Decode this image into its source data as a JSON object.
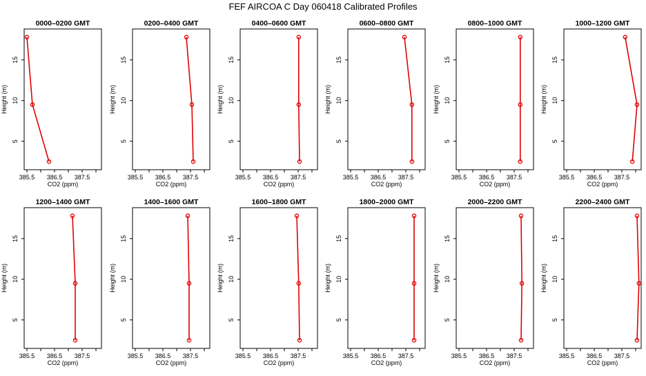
{
  "figure": {
    "title": "FEF AIRCOA C  Day 060418  Calibrated Profiles"
  },
  "colors": {
    "series": "#e00000",
    "axes": "#000000",
    "background": "#ffffff"
  },
  "chart_data": [
    {
      "type": "line",
      "title": "0000–0200 GMT",
      "xlabel": "CO2 (ppm)",
      "ylabel": "Height (m)",
      "xlim": [
        385.4,
        388.2
      ],
      "ylim": [
        1.5,
        18.8
      ],
      "xticks": [
        385.5,
        386.5,
        387.5
      ],
      "xticks_minor": [
        386,
        387,
        388
      ],
      "yticks": [
        5,
        10,
        15
      ],
      "series": [
        {
          "x": [
            386.3,
            385.7,
            385.5
          ],
          "y": [
            2.5,
            9.5,
            17.8
          ]
        }
      ]
    },
    {
      "type": "line",
      "title": "0200–0400 GMT",
      "xlabel": "CO2 (ppm)",
      "ylabel": "Height (m)",
      "xlim": [
        385.4,
        388.2
      ],
      "ylim": [
        1.5,
        18.8
      ],
      "xticks": [
        385.5,
        386.5,
        387.5
      ],
      "xticks_minor": [
        386,
        387,
        388
      ],
      "yticks": [
        5,
        10,
        15
      ],
      "series": [
        {
          "x": [
            387.6,
            387.55,
            387.35
          ],
          "y": [
            2.5,
            9.5,
            17.8
          ]
        }
      ]
    },
    {
      "type": "line",
      "title": "0400–0600 GMT",
      "xlabel": "CO2 (ppm)",
      "ylabel": "Height (m)",
      "xlim": [
        385.4,
        388.2
      ],
      "ylim": [
        1.5,
        18.8
      ],
      "xticks": [
        385.5,
        386.5,
        387.5
      ],
      "xticks_minor": [
        386,
        387,
        388
      ],
      "yticks": [
        5,
        10,
        15
      ],
      "series": [
        {
          "x": [
            387.55,
            387.52,
            387.52
          ],
          "y": [
            2.5,
            9.5,
            17.8
          ]
        }
      ]
    },
    {
      "type": "line",
      "title": "0600–0800 GMT",
      "xlabel": "CO2 (ppm)",
      "ylabel": "Height (m)",
      "xlim": [
        385.4,
        388.2
      ],
      "ylim": [
        1.5,
        18.8
      ],
      "xticks": [
        385.5,
        386.5,
        387.5
      ],
      "xticks_minor": [
        386,
        387,
        388
      ],
      "yticks": [
        5,
        10,
        15
      ],
      "series": [
        {
          "x": [
            387.72,
            387.72,
            387.45
          ],
          "y": [
            2.5,
            9.5,
            17.8
          ]
        }
      ]
    },
    {
      "type": "line",
      "title": "0800–1000 GMT",
      "xlabel": "CO2 (ppm)",
      "ylabel": "Height (m)",
      "xlim": [
        385.4,
        388.2
      ],
      "ylim": [
        1.5,
        18.8
      ],
      "xticks": [
        385.5,
        386.5,
        387.5
      ],
      "xticks_minor": [
        386,
        387,
        388
      ],
      "yticks": [
        5,
        10,
        15
      ],
      "series": [
        {
          "x": [
            387.72,
            387.72,
            387.72
          ],
          "y": [
            2.5,
            9.5,
            17.8
          ]
        }
      ]
    },
    {
      "type": "line",
      "title": "1000–1200 GMT",
      "xlabel": "CO2 (ppm)",
      "ylabel": "Height (m)",
      "xlim": [
        385.4,
        388.2
      ],
      "ylim": [
        1.5,
        18.8
      ],
      "xticks": [
        385.5,
        386.5,
        387.5
      ],
      "xticks_minor": [
        386,
        387,
        388
      ],
      "yticks": [
        5,
        10,
        15
      ],
      "series": [
        {
          "x": [
            387.88,
            388.05,
            387.62
          ],
          "y": [
            2.5,
            9.5,
            17.8
          ]
        }
      ]
    },
    {
      "type": "line",
      "title": "1200–1400 GMT",
      "xlabel": "CO2 (ppm)",
      "ylabel": "Height (m)",
      "xlim": [
        385.4,
        388.2
      ],
      "ylim": [
        1.5,
        18.8
      ],
      "xticks": [
        385.5,
        386.5,
        387.5
      ],
      "xticks_minor": [
        386,
        387,
        388
      ],
      "yticks": [
        5,
        10,
        15
      ],
      "series": [
        {
          "x": [
            387.25,
            387.25,
            387.15
          ],
          "y": [
            2.5,
            9.5,
            17.8
          ]
        }
      ]
    },
    {
      "type": "line",
      "title": "1400–1600 GMT",
      "xlabel": "CO2 (ppm)",
      "ylabel": "Height (m)",
      "xlim": [
        385.4,
        388.2
      ],
      "ylim": [
        1.5,
        18.8
      ],
      "xticks": [
        385.5,
        386.5,
        387.5
      ],
      "xticks_minor": [
        386,
        387,
        388
      ],
      "yticks": [
        5,
        10,
        15
      ],
      "series": [
        {
          "x": [
            387.45,
            387.45,
            387.4
          ],
          "y": [
            2.5,
            9.5,
            17.8
          ]
        }
      ]
    },
    {
      "type": "line",
      "title": "1600–1800 GMT",
      "xlabel": "CO2 (ppm)",
      "ylabel": "Height (m)",
      "xlim": [
        385.4,
        388.2
      ],
      "ylim": [
        1.5,
        18.8
      ],
      "xticks": [
        385.5,
        386.5,
        387.5
      ],
      "xticks_minor": [
        386,
        387,
        388
      ],
      "yticks": [
        5,
        10,
        15
      ],
      "series": [
        {
          "x": [
            387.55,
            387.52,
            387.45
          ],
          "y": [
            2.5,
            9.5,
            17.8
          ]
        }
      ]
    },
    {
      "type": "line",
      "title": "1800–2000 GMT",
      "xlabel": "CO2 (ppm)",
      "ylabel": "Height (m)",
      "xlim": [
        385.4,
        388.2
      ],
      "ylim": [
        1.5,
        18.8
      ],
      "xticks": [
        385.5,
        386.5,
        387.5
      ],
      "xticks_minor": [
        386,
        387,
        388
      ],
      "yticks": [
        5,
        10,
        15
      ],
      "series": [
        {
          "x": [
            387.8,
            387.8,
            387.8
          ],
          "y": [
            2.5,
            9.5,
            17.8
          ]
        }
      ]
    },
    {
      "type": "line",
      "title": "2000–2200 GMT",
      "xlabel": "CO2 (ppm)",
      "ylabel": "Height (m)",
      "xlim": [
        385.4,
        388.2
      ],
      "ylim": [
        1.5,
        18.8
      ],
      "xticks": [
        385.5,
        386.5,
        387.5
      ],
      "xticks_minor": [
        386,
        387,
        388
      ],
      "yticks": [
        5,
        10,
        15
      ],
      "series": [
        {
          "x": [
            387.75,
            387.78,
            387.75
          ],
          "y": [
            2.5,
            9.5,
            17.8
          ]
        }
      ]
    },
    {
      "type": "line",
      "title": "2200–2400 GMT",
      "xlabel": "CO2 (ppm)",
      "ylabel": "Height (m)",
      "xlim": [
        385.4,
        388.2
      ],
      "ylim": [
        1.5,
        18.8
      ],
      "xticks": [
        385.5,
        386.5,
        387.5
      ],
      "xticks_minor": [
        386,
        387,
        388
      ],
      "yticks": [
        5,
        10,
        15
      ],
      "series": [
        {
          "x": [
            388.05,
            388.12,
            388.05
          ],
          "y": [
            2.5,
            9.5,
            17.8
          ]
        }
      ]
    }
  ]
}
